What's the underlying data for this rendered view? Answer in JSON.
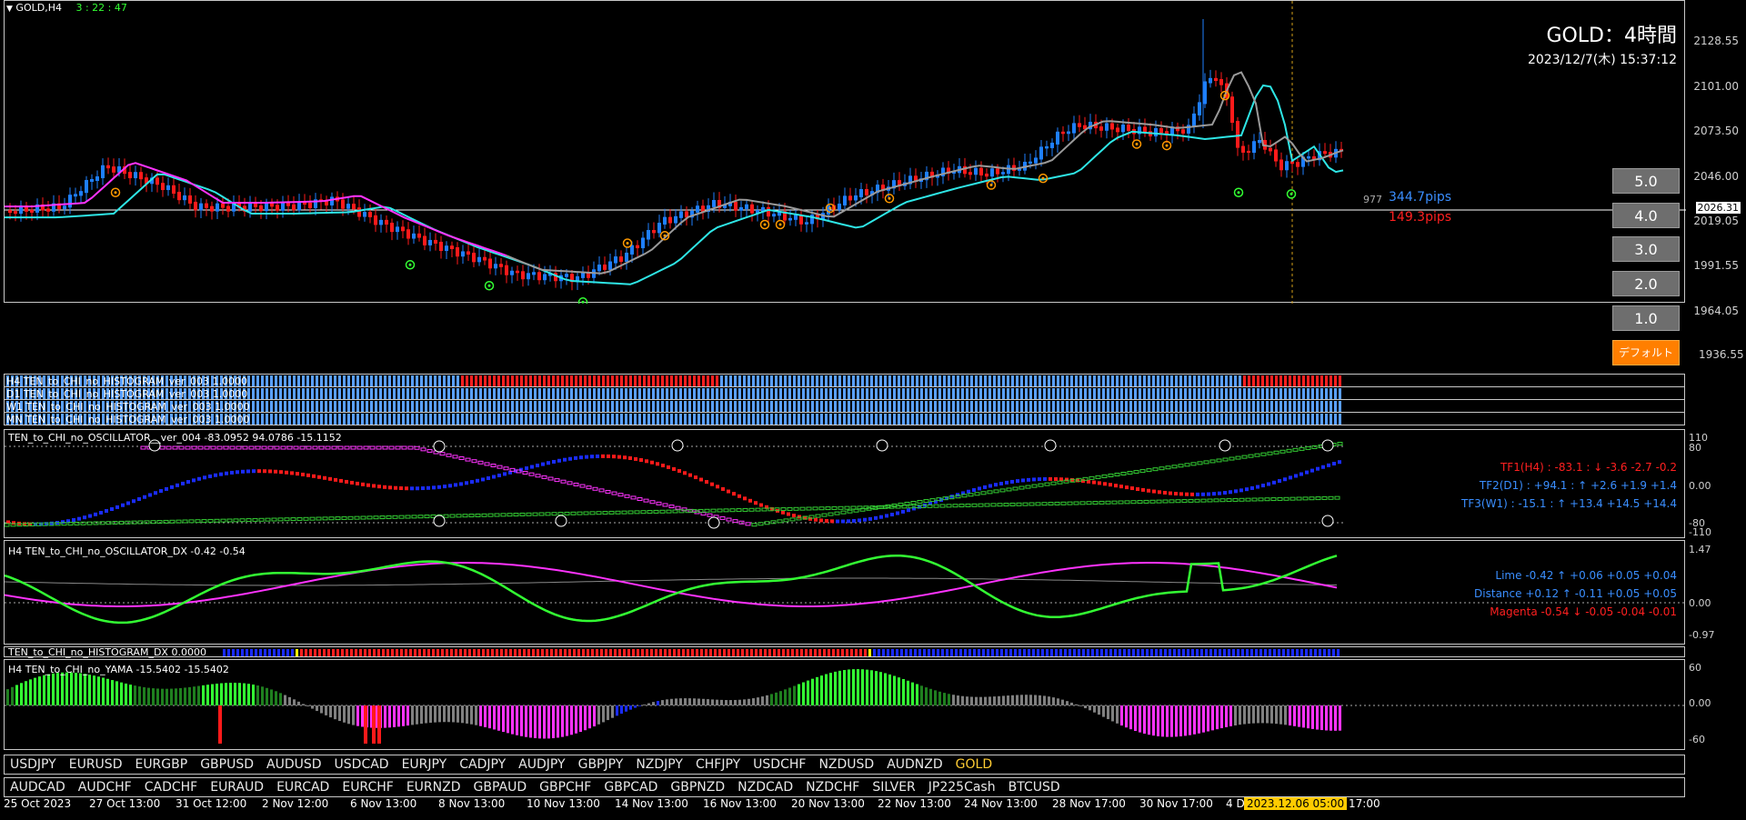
{
  "header": {
    "symbol_tf": "GOLD,H4",
    "countdown": "3 : 22 : 47"
  },
  "title_box": {
    "title": "GOLD：4時間",
    "datetime": "2023/12/7(木) 15:37:12"
  },
  "price_axis": [
    "2128.55",
    "2101.00",
    "2073.50",
    "2046.00",
    "2019.05",
    "1991.55",
    "1964.05",
    "1936.55"
  ],
  "current_price": "2026.31",
  "pips": {
    "prefix": "977",
    "upper": "344.7pips",
    "lower": "149.3pips"
  },
  "lot_buttons": [
    "5.0",
    "4.0",
    "3.0",
    "2.0",
    "1.0"
  ],
  "default_button": "デフォルト",
  "hist_panels": [
    "H4 TEN_to_CHI_no_HISTOGRAM_ver_003 1.0000",
    "D1 TEN_to_CHI_no_HISTOGRAM_ver_003 1.0000",
    "W1 TEN_to_CHI_no_HISTOGRAM_ver_003 1.0000",
    "MN TEN_to_CHI_no_HISTOGRAM_ver_003 1.0000"
  ],
  "oscillator": {
    "label": "TEN_to_CHI_no_OSCILLATOR__ver_004 -83.0952 94.0786 -15.1152",
    "axis": [
      "110",
      "80",
      "0.00",
      "-80",
      "-110"
    ],
    "tf1": "TF1(H4) : -83.1 : ↓ -3.6 -2.7 -0.2",
    "tf2": "TF2(D1) : +94.1 : ↑ +2.6 +1.9 +1.4",
    "tf3": "TF3(W1) : -15.1 : ↑ +13.4 +14.5 +14.4",
    "colors": {
      "tf1": "#ff2020",
      "tf2": "#3a8eff",
      "tf3": "#3a8eff"
    }
  },
  "dx": {
    "label": "H4 TEN_to_CHI_no_OSCILLATOR_DX -0.42 -0.54",
    "axis": [
      "1.47",
      "0.00",
      "-0.97"
    ],
    "lime": "Lime -0.42 ↑ +0.06 +0.05 +0.04",
    "distance": "Distance +0.12 ↑ -0.11 +0.05 +0.05",
    "magenta": "Magenta -0.54 ↓ -0.05 -0.04 -0.01"
  },
  "hist_dx": {
    "label": "TEN_to_CHI_no_HISTOGRAM_DX 0.0000"
  },
  "yama": {
    "label": "H4 TEN_to_CHI_no_YAMA -15.5402 -15.5402",
    "axis": [
      "60",
      "0.00",
      "-60"
    ]
  },
  "symbols_row1": [
    "USDJPY",
    "EURUSD",
    "EURGBP",
    "GBPUSD",
    "AUDUSD",
    "USDCAD",
    "EURJPY",
    "CADJPY",
    "AUDJPY",
    "GBPJPY",
    "NZDJPY",
    "CHFJPY",
    "USDCHF",
    "NZDUSD",
    "AUDNZD",
    "GOLD"
  ],
  "symbols_row2": [
    "AUDCAD",
    "AUDCHF",
    "CADCHF",
    "EURAUD",
    "EURCAD",
    "EURCHF",
    "EURNZD",
    "GBPAUD",
    "GBPCHF",
    "GBPCAD",
    "GBPNZD",
    "NZDCAD",
    "NZDCHF",
    "SILVER",
    "JP225Cash",
    "BTCUSD"
  ],
  "active_symbol": "GOLD",
  "time_axis": [
    "25 Oct 2023",
    "27 Oct 13:00",
    "31 Oct 12:00",
    "2 Nov 12:00",
    "6 Nov 13:00",
    "8 Nov 13:00",
    "10 Nov 13:00",
    "14 Nov 13:00",
    "16 Nov 13:00",
    "20 Nov 13:00",
    "22 Nov 13:00",
    "24 Nov 13:00",
    "28 Nov 17:00",
    "30 Nov 17:00",
    "4 D"
  ],
  "time_cursor": "2023.12.06 05:00",
  "time_after": "17:00"
}
